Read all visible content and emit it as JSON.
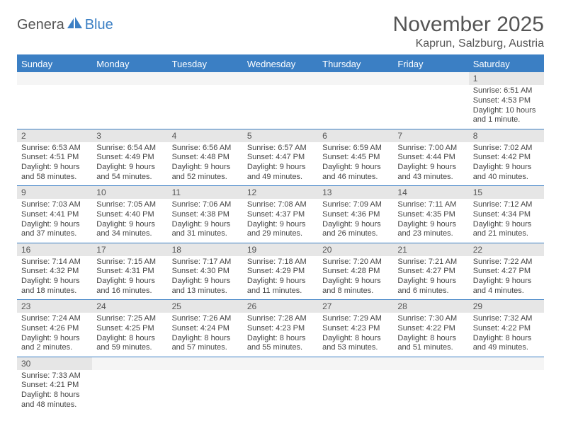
{
  "logo": {
    "part1": "Genera",
    "part2": "Blue"
  },
  "title": "November 2025",
  "location": "Kaprun, Salzburg, Austria",
  "colors": {
    "accent": "#3b7fc4",
    "header_gray": "#e6e6e6",
    "text": "#555555"
  },
  "dayHeaders": [
    "Sunday",
    "Monday",
    "Tuesday",
    "Wednesday",
    "Thursday",
    "Friday",
    "Saturday"
  ],
  "weeks": [
    [
      null,
      null,
      null,
      null,
      null,
      null,
      {
        "n": "1",
        "sr": "Sunrise: 6:51 AM",
        "ss": "Sunset: 4:53 PM",
        "dl": "Daylight: 10 hours and 1 minute."
      }
    ],
    [
      {
        "n": "2",
        "sr": "Sunrise: 6:53 AM",
        "ss": "Sunset: 4:51 PM",
        "dl": "Daylight: 9 hours and 58 minutes."
      },
      {
        "n": "3",
        "sr": "Sunrise: 6:54 AM",
        "ss": "Sunset: 4:49 PM",
        "dl": "Daylight: 9 hours and 54 minutes."
      },
      {
        "n": "4",
        "sr": "Sunrise: 6:56 AM",
        "ss": "Sunset: 4:48 PM",
        "dl": "Daylight: 9 hours and 52 minutes."
      },
      {
        "n": "5",
        "sr": "Sunrise: 6:57 AM",
        "ss": "Sunset: 4:47 PM",
        "dl": "Daylight: 9 hours and 49 minutes."
      },
      {
        "n": "6",
        "sr": "Sunrise: 6:59 AM",
        "ss": "Sunset: 4:45 PM",
        "dl": "Daylight: 9 hours and 46 minutes."
      },
      {
        "n": "7",
        "sr": "Sunrise: 7:00 AM",
        "ss": "Sunset: 4:44 PM",
        "dl": "Daylight: 9 hours and 43 minutes."
      },
      {
        "n": "8",
        "sr": "Sunrise: 7:02 AM",
        "ss": "Sunset: 4:42 PM",
        "dl": "Daylight: 9 hours and 40 minutes."
      }
    ],
    [
      {
        "n": "9",
        "sr": "Sunrise: 7:03 AM",
        "ss": "Sunset: 4:41 PM",
        "dl": "Daylight: 9 hours and 37 minutes."
      },
      {
        "n": "10",
        "sr": "Sunrise: 7:05 AM",
        "ss": "Sunset: 4:40 PM",
        "dl": "Daylight: 9 hours and 34 minutes."
      },
      {
        "n": "11",
        "sr": "Sunrise: 7:06 AM",
        "ss": "Sunset: 4:38 PM",
        "dl": "Daylight: 9 hours and 31 minutes."
      },
      {
        "n": "12",
        "sr": "Sunrise: 7:08 AM",
        "ss": "Sunset: 4:37 PM",
        "dl": "Daylight: 9 hours and 29 minutes."
      },
      {
        "n": "13",
        "sr": "Sunrise: 7:09 AM",
        "ss": "Sunset: 4:36 PM",
        "dl": "Daylight: 9 hours and 26 minutes."
      },
      {
        "n": "14",
        "sr": "Sunrise: 7:11 AM",
        "ss": "Sunset: 4:35 PM",
        "dl": "Daylight: 9 hours and 23 minutes."
      },
      {
        "n": "15",
        "sr": "Sunrise: 7:12 AM",
        "ss": "Sunset: 4:34 PM",
        "dl": "Daylight: 9 hours and 21 minutes."
      }
    ],
    [
      {
        "n": "16",
        "sr": "Sunrise: 7:14 AM",
        "ss": "Sunset: 4:32 PM",
        "dl": "Daylight: 9 hours and 18 minutes."
      },
      {
        "n": "17",
        "sr": "Sunrise: 7:15 AM",
        "ss": "Sunset: 4:31 PM",
        "dl": "Daylight: 9 hours and 16 minutes."
      },
      {
        "n": "18",
        "sr": "Sunrise: 7:17 AM",
        "ss": "Sunset: 4:30 PM",
        "dl": "Daylight: 9 hours and 13 minutes."
      },
      {
        "n": "19",
        "sr": "Sunrise: 7:18 AM",
        "ss": "Sunset: 4:29 PM",
        "dl": "Daylight: 9 hours and 11 minutes."
      },
      {
        "n": "20",
        "sr": "Sunrise: 7:20 AM",
        "ss": "Sunset: 4:28 PM",
        "dl": "Daylight: 9 hours and 8 minutes."
      },
      {
        "n": "21",
        "sr": "Sunrise: 7:21 AM",
        "ss": "Sunset: 4:27 PM",
        "dl": "Daylight: 9 hours and 6 minutes."
      },
      {
        "n": "22",
        "sr": "Sunrise: 7:22 AM",
        "ss": "Sunset: 4:27 PM",
        "dl": "Daylight: 9 hours and 4 minutes."
      }
    ],
    [
      {
        "n": "23",
        "sr": "Sunrise: 7:24 AM",
        "ss": "Sunset: 4:26 PM",
        "dl": "Daylight: 9 hours and 2 minutes."
      },
      {
        "n": "24",
        "sr": "Sunrise: 7:25 AM",
        "ss": "Sunset: 4:25 PM",
        "dl": "Daylight: 8 hours and 59 minutes."
      },
      {
        "n": "25",
        "sr": "Sunrise: 7:26 AM",
        "ss": "Sunset: 4:24 PM",
        "dl": "Daylight: 8 hours and 57 minutes."
      },
      {
        "n": "26",
        "sr": "Sunrise: 7:28 AM",
        "ss": "Sunset: 4:23 PM",
        "dl": "Daylight: 8 hours and 55 minutes."
      },
      {
        "n": "27",
        "sr": "Sunrise: 7:29 AM",
        "ss": "Sunset: 4:23 PM",
        "dl": "Daylight: 8 hours and 53 minutes."
      },
      {
        "n": "28",
        "sr": "Sunrise: 7:30 AM",
        "ss": "Sunset: 4:22 PM",
        "dl": "Daylight: 8 hours and 51 minutes."
      },
      {
        "n": "29",
        "sr": "Sunrise: 7:32 AM",
        "ss": "Sunset: 4:22 PM",
        "dl": "Daylight: 8 hours and 49 minutes."
      }
    ],
    [
      {
        "n": "30",
        "sr": "Sunrise: 7:33 AM",
        "ss": "Sunset: 4:21 PM",
        "dl": "Daylight: 8 hours and 48 minutes."
      },
      null,
      null,
      null,
      null,
      null,
      null
    ]
  ]
}
